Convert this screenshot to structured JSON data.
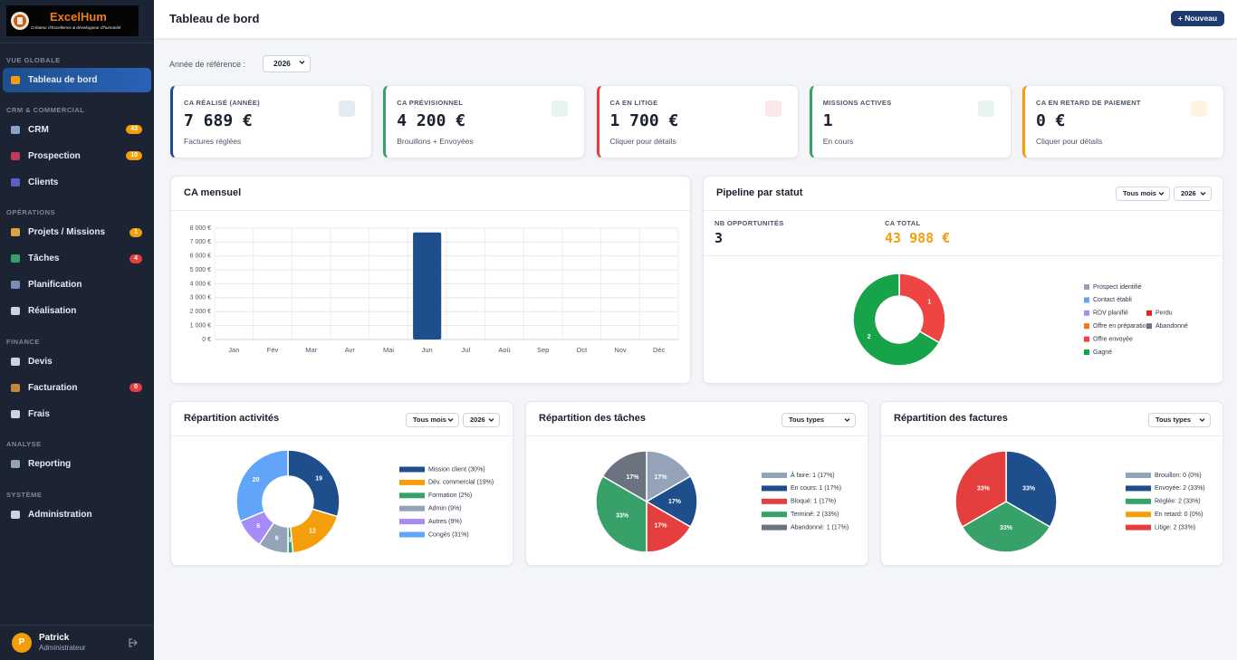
{
  "sidebar": {
    "brand": "ExcelHum",
    "tagline": "Créateur d'Excellence & développeur d'humanité",
    "sections": [
      {
        "title": "VUE GLOBALE",
        "items": [
          {
            "label": "Tableau de bord",
            "active": true
          }
        ]
      },
      {
        "title": "CRM & COMMERCIAL",
        "items": [
          {
            "label": "CRM",
            "badge": 43,
            "badge_color": "#f59e0b"
          },
          {
            "label": "Prospection",
            "badge": 10,
            "badge_color": "#f59e0b"
          },
          {
            "label": "Clients"
          }
        ]
      },
      {
        "title": "OPÉRATIONS",
        "items": [
          {
            "label": "Projets / Missions",
            "badge": 1,
            "badge_color": "#f59e0b"
          },
          {
            "label": "Tâches",
            "badge": 4,
            "badge_color": "#e53e3e"
          },
          {
            "label": "Planification"
          },
          {
            "label": "Réalisation"
          }
        ]
      },
      {
        "title": "FINANCE",
        "items": [
          {
            "label": "Devis"
          },
          {
            "label": "Facturation",
            "badge": 0,
            "badge_color": "#e53e3e"
          },
          {
            "label": "Frais"
          }
        ]
      },
      {
        "title": "ANALYSE",
        "items": [
          {
            "label": "Reporting"
          }
        ]
      },
      {
        "title": "SYSTÈME",
        "items": [
          {
            "label": "Administration"
          }
        ]
      }
    ],
    "user": {
      "initial": "P",
      "name": "Patrick",
      "role": "Administrateur"
    }
  },
  "header": {
    "title": "Tableau de bord",
    "button": "+ Nouveau"
  },
  "filter": {
    "label": "Année de référence :",
    "value": "2026"
  },
  "kpis": [
    {
      "title": "CA RÉALISÉ (ANNÉE)",
      "value": "7 689 €",
      "sub": "Factures réglées",
      "color": "#1e4f8c"
    },
    {
      "title": "CA PRÉVISIONNEL",
      "value": "4 200 €",
      "sub": "Brouillons + Envoyées",
      "color": "#38a169"
    },
    {
      "title": "CA EN LITIGE",
      "value": "1 700 €",
      "sub": "Cliquer pour détails",
      "color": "#e53e3e"
    },
    {
      "title": "MISSIONS ACTIVES",
      "value": "1",
      "sub": "En cours",
      "color": "#38a169"
    },
    {
      "title": "CA EN RETARD DE PAIEMENT",
      "value": "0 €",
      "sub": "Cliquer pour détails",
      "color": "#f59e0b"
    }
  ],
  "charts": {
    "ca_mensuel": {
      "type": "bar",
      "title": "CA mensuel",
      "categories": [
        "Jan",
        "Fév",
        "Mar",
        "Avr",
        "Mai",
        "Jun",
        "Jul",
        "Aoû",
        "Sep",
        "Oct",
        "Nov",
        "Déc"
      ],
      "values": [
        0,
        0,
        0,
        0,
        0,
        7689,
        0,
        0,
        0,
        0,
        0,
        0
      ],
      "color": "#1e4f8c",
      "ylim": [
        0,
        8000
      ],
      "yticks": [
        {
          "value": 0,
          "label": "0 €"
        },
        {
          "value": 1000,
          "label": "1 000 €"
        },
        {
          "value": 2000,
          "label": "2 000 €"
        },
        {
          "value": 3000,
          "label": "3 000 €"
        },
        {
          "value": 4000,
          "label": "4 000 €"
        },
        {
          "value": 5000,
          "label": "5 000 €"
        },
        {
          "value": 6000,
          "label": "6 000 €"
        },
        {
          "value": 7000,
          "label": "7 000 €"
        },
        {
          "value": 8000,
          "label": "8 000 €"
        }
      ],
      "grid": true
    },
    "pipeline": {
      "type": "doughnut",
      "title": "Pipeline par statut",
      "filters": [
        "Tous mois",
        "2026"
      ],
      "stats": [
        {
          "label": "NB OPPORTUNITÉS",
          "value": "3",
          "color": "#1a202c"
        },
        {
          "label": "CA TOTAL",
          "value": "43 988 €",
          "color": "#f59e0b"
        }
      ],
      "categories": [
        "Prospect identifié",
        "Contact établi",
        "RDV planifié",
        "Offre en préparation",
        "Offre envoyée",
        "Gagné",
        "Perdu",
        "Abandonné"
      ],
      "values": [
        0,
        0,
        0,
        0,
        1,
        2,
        0,
        0
      ],
      "colors": [
        "#94a3b8",
        "#60a5fa",
        "#a78bfa",
        "#f97316",
        "#ef4444",
        "#16a34a",
        "#dc2626",
        "#6b7280"
      ]
    },
    "activites": {
      "type": "doughnut",
      "title": "Répartition activités",
      "filters": [
        "Tous mois",
        "2026"
      ],
      "categories": [
        "Mission client (30%)",
        "Dév. commercial (19%)",
        "Formation (2%)",
        "Admin (9%)",
        "Autres (9%)",
        "Congés (31%)"
      ],
      "values": [
        19,
        12,
        1,
        6,
        6,
        20
      ],
      "colors": [
        "#1e4f8c",
        "#f59e0b",
        "#38a169",
        "#94a3b8",
        "#a78bfa",
        "#60a5fa"
      ]
    },
    "taches": {
      "type": "pie",
      "title": "Répartition des tâches",
      "filters": [
        "Tous types"
      ],
      "categories": [
        "À faire: 1 (17%)",
        "En cours: 1 (17%)",
        "Bloqué: 1 (17%)",
        "Terminé: 2 (33%)",
        "Abandonné: 1 (17%)"
      ],
      "values": [
        1,
        1,
        1,
        2,
        1
      ],
      "value_labels": [
        "17%",
        "17%",
        "17%",
        "33%",
        "17%"
      ],
      "colors": [
        "#94a3b8",
        "#1e4f8c",
        "#e53e3e",
        "#38a169",
        "#6b7280"
      ]
    },
    "factures": {
      "type": "pie",
      "title": "Répartition des factures",
      "filters": [
        "Tous types"
      ],
      "categories": [
        "Brouillon: 0 (0%)",
        "Envoyée: 2 (33%)",
        "Réglée: 2 (33%)",
        "En retard: 0 (0%)",
        "Litige: 2 (33%)"
      ],
      "values": [
        0,
        2,
        2,
        0,
        2
      ],
      "value_labels": [
        null,
        "33%",
        "33%",
        null,
        "33%"
      ],
      "colors": [
        "#94a3b8",
        "#1e4f8c",
        "#38a169",
        "#f59e0b",
        "#e53e3e"
      ]
    }
  }
}
